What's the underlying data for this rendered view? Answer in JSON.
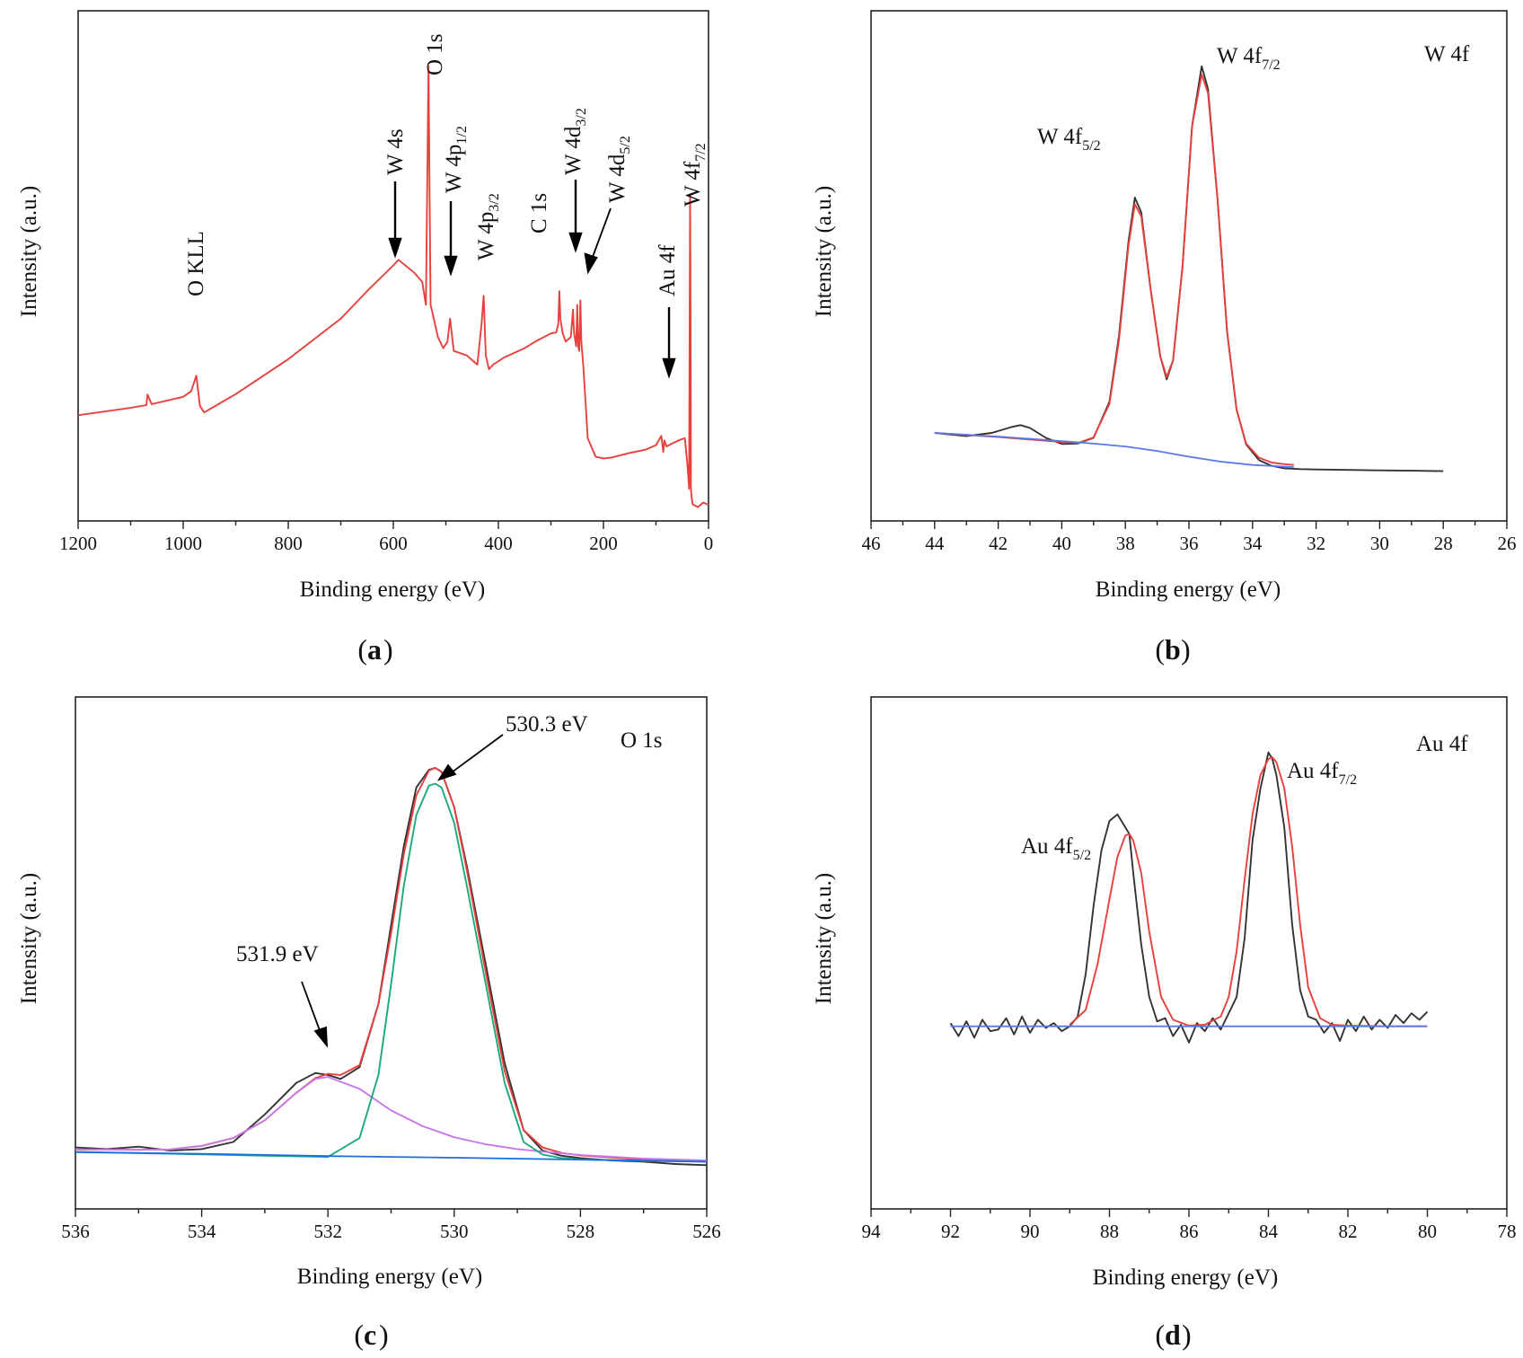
{
  "chart_data": [
    {
      "type": "line",
      "panel": "(a)",
      "panel_letter": "a",
      "xlabel": "Binding energy (eV)",
      "ylabel": "Intensity (a.u.)",
      "xlim": [
        1200,
        0
      ],
      "x_reversed": true,
      "x_ticks": [
        1200,
        1000,
        800,
        600,
        400,
        200,
        0
      ],
      "y_ticks": false,
      "series": [
        {
          "color": "#e8403c",
          "x": [
            1200,
            1100,
            1070,
            1068,
            1060,
            1000,
            985,
            975,
            968,
            960,
            900,
            800,
            700,
            650,
            600,
            590,
            560,
            545,
            538,
            533,
            531,
            529,
            525,
            515,
            505,
            497,
            492,
            485,
            460,
            440,
            432,
            428,
            424,
            418,
            410,
            390,
            350,
            330,
            300,
            290,
            286,
            284,
            282,
            278,
            272,
            262,
            258,
            256,
            252,
            250,
            248,
            246,
            244,
            242,
            238,
            230,
            215,
            200,
            185,
            150,
            120,
            100,
            90,
            86,
            84,
            80,
            70,
            55,
            45,
            40,
            37,
            36,
            35,
            34,
            33.5,
            32,
            30,
            20,
            10,
            0
          ],
          "y": [
            20.0,
            21.6,
            22.2,
            24.5,
            22.4,
            24.0,
            25.2,
            28.6,
            22.0,
            20.6,
            24.6,
            32.2,
            41.0,
            47.0,
            52.6,
            53.8,
            51.0,
            49.0,
            44.0,
            96.0,
            68.0,
            44.0,
            42.0,
            37.0,
            34.6,
            36.0,
            41.0,
            34.0,
            33.0,
            31.0,
            40.0,
            46.0,
            33.0,
            30.0,
            31.0,
            32.5,
            34.6,
            36.0,
            37.8,
            38.0,
            39.8,
            47.0,
            41.0,
            38.0,
            36.0,
            37.0,
            43.0,
            38.0,
            35.0,
            44.0,
            35.0,
            34.0,
            45.0,
            36.0,
            30.0,
            15.0,
            11.0,
            10.6,
            10.8,
            11.8,
            12.5,
            13.5,
            15.5,
            12.0,
            14.5,
            13.2,
            13.8,
            14.6,
            15.0,
            9.0,
            4.0,
            35.0,
            68.0,
            35.0,
            4.0,
            2.0,
            0.6,
            0.0,
            1.0,
            0.5
          ]
        }
      ],
      "annotations": [
        {
          "text": "O KLL",
          "x": 973
        },
        {
          "text": "W 4s",
          "x": 595,
          "arrow": true
        },
        {
          "text": "O 1s",
          "x": 531
        },
        {
          "text": "W 4p",
          "sub": "1/2",
          "x": 492,
          "arrow": true
        },
        {
          "text": "W 4p",
          "sub": "3/2",
          "x": 427
        },
        {
          "text": "C 1s",
          "x": 285
        },
        {
          "text": "W 4d",
          "sub": "3/2",
          "x": 258,
          "arrow": true
        },
        {
          "text": "W 4d",
          "sub": "5/2",
          "x": 244,
          "arrow": true
        },
        {
          "text": "Au 4f",
          "x": 84,
          "arrow": true
        },
        {
          "text": "W 4f",
          "sub": "7/2",
          "x": 35
        }
      ]
    },
    {
      "type": "line",
      "panel": "(b)",
      "panel_letter": "b",
      "xlabel": "Binding energy (eV)",
      "ylabel": "Intensity (a.u.)",
      "xlim": [
        46,
        26
      ],
      "x_reversed": true,
      "x_ticks": [
        46,
        44,
        42,
        40,
        38,
        36,
        34,
        32,
        30,
        28,
        26
      ],
      "y_ticks": false,
      "inset_label": "W 4f",
      "series": [
        {
          "color": "#333333",
          "kind": "measured",
          "x": [
            44,
            43,
            42.2,
            41.6,
            41.3,
            41.0,
            40.5,
            40.0,
            39.5,
            39,
            38.5,
            38.2,
            37.9,
            37.7,
            37.5,
            37.2,
            36.9,
            36.7,
            36.5,
            36.2,
            35.9,
            35.6,
            35.4,
            35.1,
            34.8,
            34.5,
            34.2,
            33.8,
            33.4,
            33,
            32.5,
            32,
            31,
            30,
            29,
            28
          ],
          "y": [
            9.4,
            8.6,
            9.4,
            10.8,
            11.3,
            10.6,
            8.2,
            6.7,
            6.8,
            8.2,
            17.0,
            33.0,
            56.0,
            66.6,
            63.0,
            44.0,
            28.0,
            22.4,
            27.0,
            50.0,
            84.0,
            98.5,
            93.0,
            66.0,
            34.0,
            15.0,
            6.6,
            2.8,
            1.4,
            0.8,
            0.6,
            0.5,
            0.4,
            0.3,
            0.2,
            0.1
          ]
        },
        {
          "color": "#e8403c",
          "kind": "fit",
          "x": [
            44,
            42,
            40,
            39.5,
            39,
            38.5,
            38.2,
            37.9,
            37.7,
            37.5,
            37.2,
            36.9,
            36.7,
            36.5,
            36.2,
            35.9,
            35.6,
            35.4,
            35.1,
            34.8,
            34.5,
            34.2,
            33.8,
            33.4,
            33,
            32.7
          ],
          "y": [
            9.4,
            8.4,
            7.2,
            6.9,
            8.3,
            16.5,
            32.0,
            55.0,
            65.0,
            62.0,
            44.0,
            28.0,
            23.0,
            27.0,
            50.0,
            84.0,
            96.5,
            92.0,
            66.0,
            34.0,
            15.0,
            6.8,
            3.4,
            2.2,
            1.8,
            1.6
          ]
        },
        {
          "color": "#5878e8",
          "kind": "background",
          "x": [
            44,
            42,
            40,
            39,
            38,
            37,
            36,
            35,
            34,
            33,
            32.7
          ],
          "y": [
            9.4,
            8.5,
            7.4,
            6.8,
            6.1,
            5.0,
            3.6,
            2.4,
            1.6,
            1.2,
            1.1
          ]
        }
      ],
      "annotations": [
        {
          "text": "W 4f",
          "sub": "5/2",
          "x": 37.7
        },
        {
          "text": "W 4f",
          "sub": "7/2",
          "x": 35.6
        }
      ]
    },
    {
      "type": "line",
      "panel": "(c)",
      "panel_letter": "c",
      "xlabel": "Binding energy (eV)",
      "ylabel": "Intensity (a.u.)",
      "xlim": [
        536,
        526
      ],
      "x_reversed": true,
      "x_ticks": [
        536,
        534,
        532,
        530,
        528,
        526
      ],
      "y_ticks": false,
      "inset_label": "O 1s",
      "series": [
        {
          "color": "#333333",
          "kind": "measured",
          "x": [
            536,
            535.5,
            535,
            534.5,
            534,
            533.5,
            533,
            532.5,
            532.2,
            532.0,
            531.8,
            531.5,
            531.2,
            531.0,
            530.8,
            530.6,
            530.4,
            530.3,
            530.2,
            530.0,
            529.8,
            529.5,
            529.2,
            528.9,
            528.6,
            528.3,
            528,
            527.5,
            527,
            526.5,
            526
          ],
          "y": [
            3.6,
            3.2,
            3.8,
            2.8,
            3.2,
            5.0,
            12.0,
            20.0,
            22.5,
            22.0,
            21.0,
            24.0,
            40.0,
            60.0,
            80.0,
            95.0,
            99.5,
            100.0,
            99.0,
            90.0,
            75.0,
            50.0,
            25.0,
            8.0,
            2.8,
            1.5,
            0.9,
            0.3,
            0.0,
            -0.6,
            -0.9
          ]
        },
        {
          "color": "#e8403c",
          "kind": "fit",
          "x": [
            536,
            535,
            534.5,
            534,
            533.5,
            533,
            532.5,
            532.2,
            532.0,
            531.8,
            531.5,
            531.2,
            531.0,
            530.8,
            530.6,
            530.4,
            530.3,
            530.2,
            530.0,
            529.8,
            529.5,
            529.2,
            528.9,
            528.6,
            528.3,
            528,
            527,
            526
          ],
          "y": [
            3.1,
            3.0,
            3.1,
            4.0,
            6.0,
            10.5,
            17.5,
            21.2,
            22.3,
            22.0,
            24.5,
            40.0,
            58.0,
            78.0,
            93.0,
            99.3,
            100.0,
            99.0,
            90.0,
            74.0,
            48.0,
            23.0,
            8.0,
            3.6,
            2.2,
            1.6,
            0.5,
            0.0
          ]
        },
        {
          "color": "#c878e8",
          "kind": "component",
          "x": [
            536,
            535,
            534.5,
            534,
            533.5,
            533,
            532.5,
            532.2,
            532.0,
            531.5,
            531,
            530.5,
            530,
            529.5,
            529,
            528.5,
            528,
            527,
            526
          ],
          "y": [
            3.1,
            3.0,
            3.1,
            4.0,
            6.0,
            10.5,
            17.5,
            21.0,
            21.5,
            18.5,
            13.0,
            9.0,
            6.2,
            4.4,
            3.2,
            2.4,
            1.7,
            0.8,
            0.3
          ]
        },
        {
          "color": "#1aaa78",
          "kind": "component",
          "x": [
            536,
            533,
            532,
            531.5,
            531.2,
            531.0,
            530.8,
            530.6,
            530.4,
            530.3,
            530.2,
            530.0,
            529.8,
            529.5,
            529.2,
            528.9,
            528.6,
            528.3,
            528,
            527,
            526
          ],
          "y": [
            2.5,
            1.5,
            1.2,
            6.0,
            22.0,
            45.0,
            70.0,
            88.0,
            95.5,
            96.0,
            95.0,
            86.0,
            70.0,
            45.0,
            20.0,
            5.0,
            1.8,
            0.9,
            0.6,
            0.2,
            0.0
          ]
        },
        {
          "color": "#1a6ee0",
          "kind": "background",
          "x": [
            536,
            534,
            532,
            530,
            528,
            526
          ],
          "y": [
            2.4,
            2.0,
            1.4,
            1.0,
            0.5,
            0.0
          ]
        }
      ],
      "annotations": [
        {
          "text": "531.9 eV",
          "x": 531.9,
          "arrow": true
        },
        {
          "text": "530.3 eV",
          "x": 530.3,
          "arrow": true
        }
      ]
    },
    {
      "type": "line",
      "panel": "(d)",
      "panel_letter": "d",
      "xlabel": "Binding energy (eV)",
      "ylabel": "Intensity (a.u.)",
      "xlim": [
        94,
        78
      ],
      "x_reversed": true,
      "x_ticks": [
        94,
        92,
        90,
        88,
        86,
        84,
        82,
        80,
        78
      ],
      "y_ticks": false,
      "inset_label": "Au 4f",
      "series": [
        {
          "color": "#333333",
          "kind": "measured",
          "x": [
            92.0,
            91.8,
            91.6,
            91.4,
            91.2,
            91.0,
            90.8,
            90.6,
            90.4,
            90.2,
            90.0,
            89.8,
            89.6,
            89.4,
            89.2,
            89.0,
            88.8,
            88.6,
            88.4,
            88.2,
            88.0,
            87.8,
            87.6,
            87.5,
            87.4,
            87.2,
            87.0,
            86.8,
            86.6,
            86.4,
            86.2,
            86.0,
            85.8,
            85.6,
            85.4,
            85.2,
            85.0,
            84.8,
            84.6,
            84.4,
            84.2,
            84.0,
            83.9,
            83.8,
            83.6,
            83.4,
            83.2,
            83.0,
            82.8,
            82.6,
            82.4,
            82.2,
            82.0,
            81.8,
            81.6,
            81.4,
            81.2,
            81.0,
            80.8,
            80.6,
            80.4,
            80.2,
            80.0
          ],
          "y": [
            12.0,
            8.0,
            12.5,
            7.5,
            13.0,
            9.5,
            10.0,
            13.5,
            8.5,
            14.0,
            9.0,
            13.0,
            10.5,
            12.0,
            9.5,
            11.0,
            14.0,
            27.0,
            48.0,
            65.0,
            74.0,
            76.0,
            72.0,
            70.0,
            58.0,
            36.0,
            20.0,
            12.5,
            13.5,
            8.0,
            11.5,
            6.0,
            12.0,
            9.5,
            13.5,
            10.0,
            15.0,
            20.0,
            38.0,
            68.0,
            84.0,
            95.0,
            93.0,
            88.0,
            72.0,
            42.0,
            22.0,
            14.0,
            13.0,
            9.0,
            12.0,
            6.5,
            13.0,
            9.5,
            14.0,
            10.0,
            13.0,
            10.5,
            14.5,
            12.0,
            15.0,
            13.0,
            15.5
          ]
        },
        {
          "color": "#e8403c",
          "kind": "fit",
          "x": [
            89.0,
            88.6,
            88.3,
            88.0,
            87.8,
            87.6,
            87.5,
            87.4,
            87.2,
            87.0,
            86.7,
            86.4,
            86.0,
            85.6,
            85.2,
            85.0,
            84.8,
            84.6,
            84.4,
            84.2,
            84.0,
            83.9,
            83.8,
            83.6,
            83.4,
            83.2,
            83.0,
            82.7,
            82.4,
            82.0,
            81.0,
            80.0
          ],
          "y": [
            11.5,
            16.0,
            30.0,
            50.0,
            63.0,
            69.5,
            70.0,
            68.0,
            58.0,
            40.0,
            20.0,
            13.0,
            11.2,
            11.5,
            14.0,
            20.0,
            34.0,
            56.0,
            76.0,
            88.0,
            93.0,
            93.5,
            92.0,
            84.0,
            66.0,
            42.0,
            23.0,
            13.5,
            11.5,
            11.2,
            11.0,
            11.0
          ]
        },
        {
          "color": "#5878e8",
          "kind": "background",
          "x": [
            92,
            90,
            88,
            86,
            84,
            82,
            80
          ],
          "y": [
            11.0,
            11.0,
            11.0,
            11.0,
            11.0,
            11.0,
            11.0
          ]
        }
      ],
      "annotations": [
        {
          "text": "Au 4f",
          "sub": "5/2",
          "x": 87.5
        },
        {
          "text": "Au 4f",
          "sub": "7/2",
          "x": 84.0
        }
      ]
    }
  ]
}
